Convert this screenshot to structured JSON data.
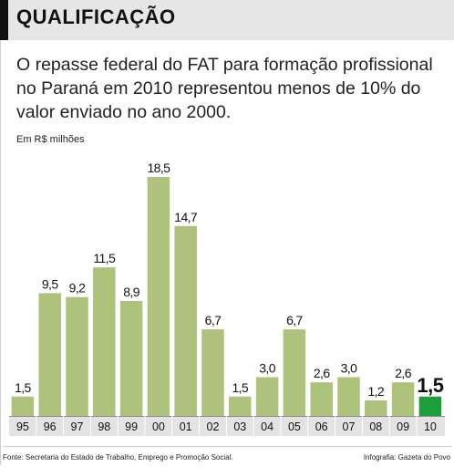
{
  "header": {
    "title": "QUALIFICAÇÃO"
  },
  "subtitle": "O repasse federal do FAT para formação profissional no Paraná em 2010 representou menos de 10% do valor enviado no ano 2000.",
  "footer": {
    "source": "Fonte: Secretaria do Estado de Trabalho, Emprego e Promoção Social.",
    "credit": "Infografia: Gazeta do Povo"
  },
  "colors": {
    "bar": "#adc27a",
    "bar_highlight": "#1e9e3a",
    "axis_band": "#e3e3e3",
    "header_band": "#e6e6e6"
  },
  "chart_data": {
    "type": "bar",
    "ylabel": "Em R$ milhões",
    "categories": [
      "95",
      "96",
      "97",
      "98",
      "99",
      "00",
      "01",
      "02",
      "03",
      "04",
      "05",
      "06",
      "07",
      "08",
      "09",
      "10"
    ],
    "values": [
      1.5,
      9.5,
      9.2,
      11.5,
      8.9,
      18.5,
      14.7,
      6.7,
      1.5,
      3.0,
      6.7,
      2.6,
      3.0,
      1.2,
      2.6,
      1.5
    ],
    "value_labels": [
      "1,5",
      "9,5",
      "9,2",
      "11,5",
      "8,9",
      "18,5",
      "14,7",
      "6,7",
      "1,5",
      "3,0",
      "6,7",
      "2,6",
      "3,0",
      "1,2",
      "2,6",
      "1,5"
    ],
    "highlight_index": 15,
    "ylim": [
      0,
      18.5
    ],
    "grid": false,
    "legend": "none"
  }
}
